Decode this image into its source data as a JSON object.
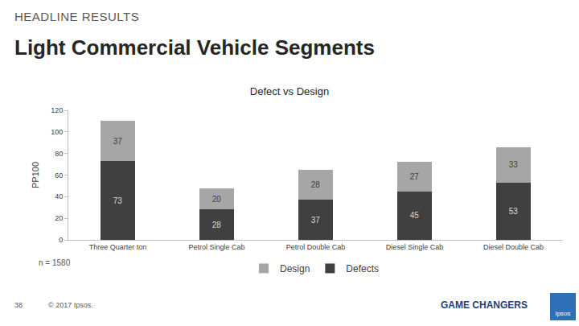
{
  "page": {
    "header": "HEADLINE RESULTS",
    "title": "Light Commercial Vehicle Segments",
    "note": "n = 1580",
    "page_number": "38",
    "copyright": "© 2017 Ipsos.",
    "tagline": "GAME CHANGERS",
    "logo": "Ipsos"
  },
  "chart_data": {
    "type": "bar",
    "stacked": true,
    "title": "Defect vs Design",
    "y_label": "PP100",
    "categories": [
      "Three Quarter ton",
      "Petrol Single Cab",
      "Petrol Double Cab",
      "Diesel Single Cab",
      "Diesel Double Cab"
    ],
    "series": [
      {
        "name": "Defects",
        "color": "#404040",
        "values": [
          73,
          28,
          37,
          45,
          53
        ]
      },
      {
        "name": "Design",
        "color": "#a6a6a6",
        "values": [
          37,
          20,
          28,
          27,
          33
        ]
      }
    ],
    "ylim": [
      0,
      120
    ],
    "yticks": [
      0,
      20,
      40,
      60,
      80,
      100,
      120
    ],
    "grid": false,
    "legend": "bottom",
    "data_labels": true
  }
}
